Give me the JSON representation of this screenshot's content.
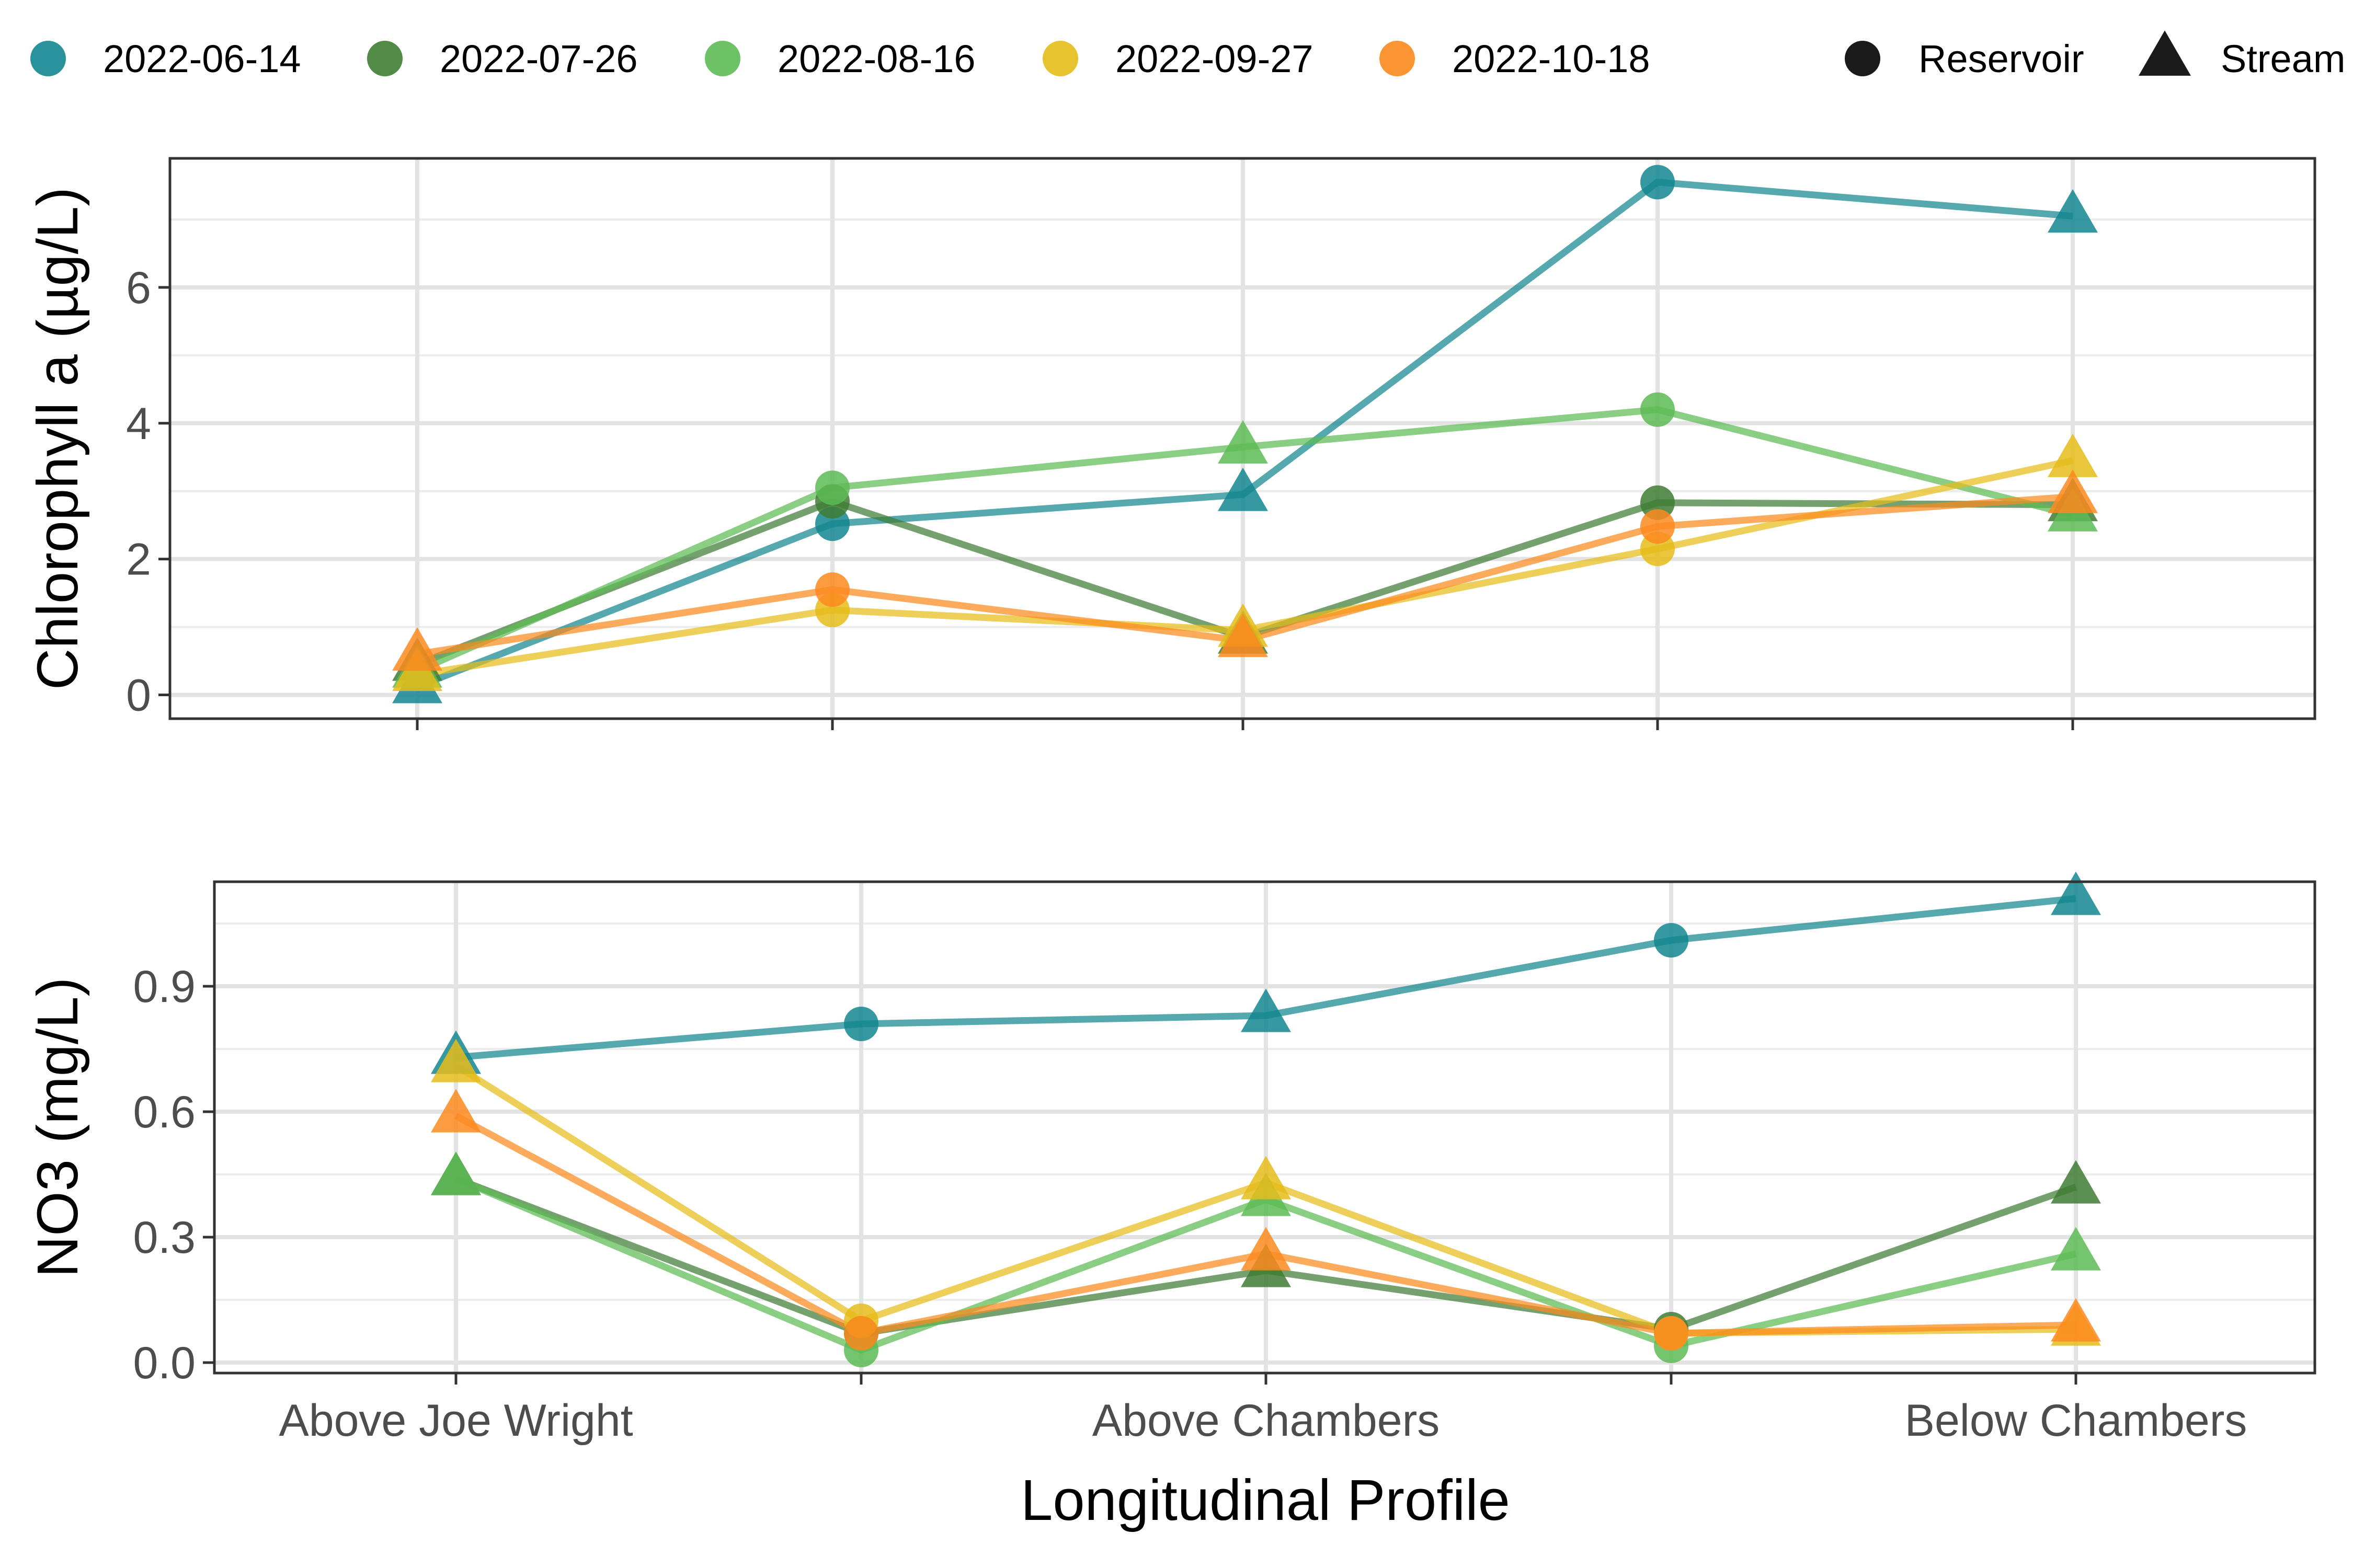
{
  "chart_data": [
    {
      "type": "line",
      "ylabel": "Chlorophyll a (µg/L)",
      "xlabel": "",
      "categories": [
        "Above Joe Wright",
        "",
        "Above Chambers",
        "",
        "Below Chambers"
      ],
      "ylim": [
        -0.35,
        7.9
      ],
      "yticks": [
        0,
        2,
        4,
        6
      ],
      "grid": true,
      "site_type": [
        "Stream",
        "Reservoir",
        "Stream",
        "Reservoir",
        "Stream"
      ],
      "series": [
        {
          "name": "2022-06-14",
          "color": "#13868f",
          "values": [
            0.12,
            2.52,
            2.95,
            7.55,
            7.05
          ]
        },
        {
          "name": "2022-07-26",
          "color": "#3f7d34",
          "values": [
            0.45,
            2.85,
            0.85,
            2.83,
            2.8
          ]
        },
        {
          "name": "2022-08-16",
          "color": "#5dbb55",
          "values": [
            0.35,
            3.05,
            3.65,
            4.2,
            2.65
          ]
        },
        {
          "name": "2022-09-27",
          "color": "#e6bc1a",
          "values": [
            0.3,
            1.25,
            0.95,
            2.15,
            3.45
          ]
        },
        {
          "name": "2022-10-18",
          "color": "#fb8a1e",
          "values": [
            0.6,
            1.55,
            0.8,
            2.48,
            2.92
          ]
        }
      ]
    },
    {
      "type": "line",
      "ylabel": "NO3 (mg/L)",
      "xlabel": "Longitudinal Profile",
      "categories": [
        "Above Joe Wright",
        "",
        "Above Chambers",
        "",
        "Below Chambers"
      ],
      "ylim": [
        -0.025,
        1.15
      ],
      "yticks": [
        "0.0",
        "0.3",
        "0.6",
        "0.9"
      ],
      "grid": true,
      "site_type": [
        "Stream",
        "Reservoir",
        "Stream",
        "Reservoir",
        "Stream"
      ],
      "series": [
        {
          "name": "2022-06-14",
          "color": "#13868f",
          "values": [
            0.73,
            0.81,
            0.83,
            1.01,
            1.11
          ]
        },
        {
          "name": "2022-07-26",
          "color": "#3f7d34",
          "values": [
            0.44,
            0.07,
            0.22,
            0.08,
            0.42
          ]
        },
        {
          "name": "2022-08-16",
          "color": "#5dbb55",
          "values": [
            0.44,
            0.03,
            0.39,
            0.04,
            0.26
          ]
        },
        {
          "name": "2022-09-27",
          "color": "#e6bc1a",
          "values": [
            0.71,
            0.1,
            0.43,
            0.07,
            0.08
          ]
        },
        {
          "name": "2022-10-18",
          "color": "#fb8a1e",
          "values": [
            0.59,
            0.07,
            0.26,
            0.07,
            0.09
          ]
        }
      ]
    }
  ],
  "legend": {
    "placement": "top",
    "dates": [
      {
        "label": "2022-06-14",
        "color": "#13868f"
      },
      {
        "label": "2022-07-26",
        "color": "#3f7d34"
      },
      {
        "label": "2022-08-16",
        "color": "#5dbb55"
      },
      {
        "label": "2022-09-27",
        "color": "#e6bc1a"
      },
      {
        "label": "2022-10-18",
        "color": "#fb8a1e"
      }
    ],
    "shapes": [
      {
        "label": "Reservoir",
        "shape": "circle"
      },
      {
        "label": "Stream",
        "shape": "triangle"
      }
    ]
  }
}
